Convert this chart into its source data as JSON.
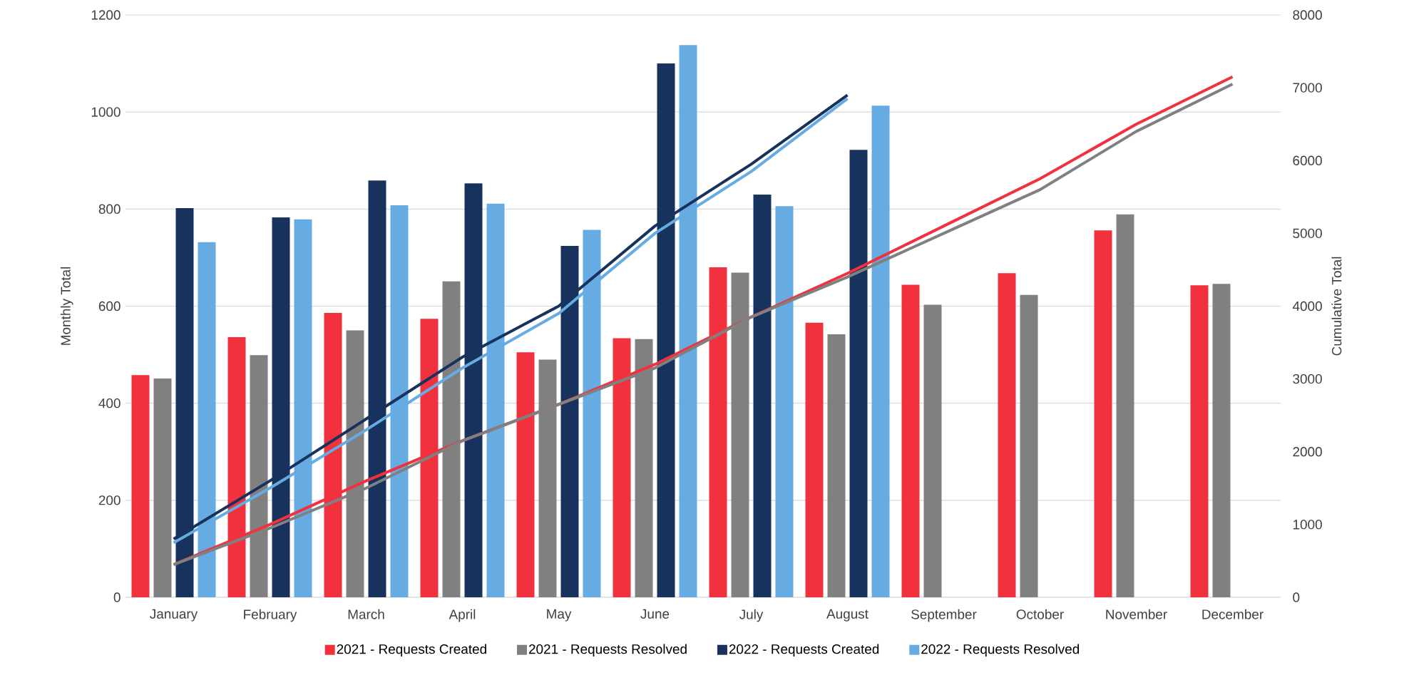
{
  "chart_data": {
    "type": "bar",
    "ylabel": "Monthly Total",
    "y2label": "Cumulative Total",
    "categories": [
      "January",
      "February",
      "March",
      "April",
      "May",
      "June",
      "July",
      "August",
      "September",
      "October",
      "November",
      "December"
    ],
    "series": [
      {
        "name": "2021 - Requests Created",
        "color": "#f2313f",
        "values": [
          458,
          536,
          586,
          574,
          505,
          534,
          680,
          566,
          644,
          668,
          756,
          643
        ]
      },
      {
        "name": "2021 - Requests Resolved",
        "color": "#808080",
        "values": [
          451,
          499,
          550,
          651,
          490,
          532,
          669,
          542,
          603,
          623,
          789,
          646
        ]
      },
      {
        "name": "2022 - Requests Created",
        "color": "#17325c",
        "values": [
          802,
          783,
          859,
          853,
          724,
          1100,
          830,
          922,
          null,
          null,
          null,
          null
        ]
      },
      {
        "name": "2022 - Requests Resolved",
        "color": "#67abe3",
        "values": [
          732,
          779,
          808,
          811,
          757,
          1138,
          806,
          1013,
          null,
          null,
          null,
          null
        ]
      },
      {
        "type": "line",
        "axis": "y2",
        "color": "#f2313f",
        "values": [
          450,
          1000,
          1600,
          2150,
          2650,
          3200,
          3850,
          4450,
          5100,
          5750,
          6500,
          7150
        ]
      },
      {
        "type": "line",
        "axis": "y2",
        "color": "#808080",
        "values": [
          450,
          950,
          1500,
          2150,
          2650,
          3150,
          3850,
          4400,
          5000,
          5600,
          6400,
          7050
        ]
      },
      {
        "type": "line",
        "axis": "y2",
        "color": "#17325c",
        "values": [
          800,
          1600,
          2450,
          3300,
          4000,
          5100,
          5950,
          6900,
          null,
          null,
          null,
          null
        ]
      },
      {
        "type": "line",
        "axis": "y2",
        "color": "#67abe3",
        "values": [
          750,
          1500,
          2300,
          3150,
          3900,
          5000,
          5850,
          6850,
          null,
          null,
          null,
          null
        ]
      }
    ],
    "ylim": [
      0,
      1200
    ],
    "yticks": [
      0,
      200,
      400,
      600,
      800,
      1000,
      1200
    ],
    "y2lim": [
      0,
      8000
    ],
    "y2ticks": [
      0,
      1000,
      2000,
      3000,
      4000,
      5000,
      6000,
      7000,
      8000
    ],
    "grid": "y",
    "legend": "bottom"
  }
}
